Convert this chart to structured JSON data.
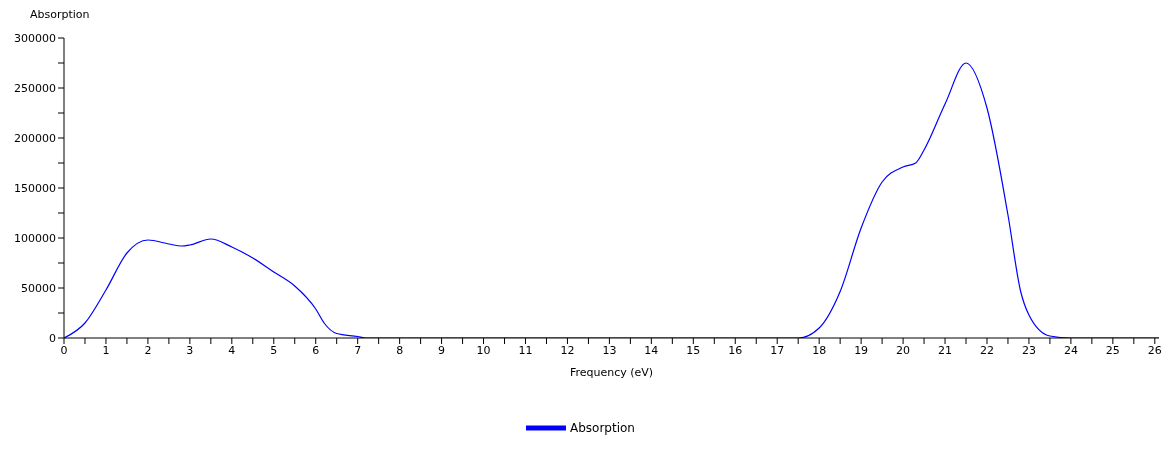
{
  "chart_data": {
    "type": "line",
    "ylabel": "Absorption",
    "xlabel": "Frequency (eV)",
    "x": [
      0,
      0.5,
      1,
      1.5,
      2,
      2.5,
      2.8,
      3,
      3.5,
      4,
      4.5,
      5,
      5.5,
      6,
      6.2,
      6.5,
      7,
      7.2,
      10,
      15,
      17.5,
      18,
      18.5,
      19,
      19.5,
      20,
      20.3,
      20.5,
      21,
      21.5,
      22,
      22.5,
      22.8,
      23,
      23.5,
      24,
      26.1
    ],
    "series": [
      {
        "name": "Absorption",
        "color": "#0000ff",
        "values": [
          0,
          15000,
          48000,
          85000,
          98000,
          94000,
          92000,
          93000,
          99000,
          91000,
          80000,
          66000,
          52000,
          29000,
          15000,
          4500,
          1500,
          0,
          0,
          0,
          0,
          10000,
          46500,
          110000,
          156000,
          171000,
          175000,
          188000,
          234000,
          275000,
          230000,
          123000,
          47000,
          23000,
          2000,
          0,
          0
        ]
      }
    ],
    "xlim": [
      0,
      26.1
    ],
    "xticks": [
      0,
      {
        "value": 0.5,
        "label": null
      },
      1,
      {
        "value": 1.5,
        "label": null
      },
      2,
      {
        "value": 2.5,
        "label": null
      },
      3,
      {
        "value": 3.5,
        "label": null
      },
      4,
      {
        "value": 4.5,
        "label": null
      },
      5,
      {
        "value": 5.5,
        "label": null
      },
      6,
      {
        "value": 6.5,
        "label": null
      },
      7,
      {
        "value": 7.5,
        "label": null
      },
      8,
      {
        "value": 8.5,
        "label": null
      },
      9,
      {
        "value": 9.5,
        "label": null
      },
      10,
      {
        "value": 10.5,
        "label": null
      },
      11,
      {
        "value": 11.5,
        "label": null
      },
      12,
      {
        "value": 12.5,
        "label": null
      },
      13,
      {
        "value": 13.5,
        "label": null
      },
      14,
      {
        "value": 14.5,
        "label": null
      },
      15,
      {
        "value": 15.5,
        "label": null
      },
      16,
      {
        "value": 16.5,
        "label": null
      },
      17,
      {
        "value": 17.5,
        "label": null
      },
      18,
      {
        "value": 18.5,
        "label": null
      },
      19,
      {
        "value": 19.5,
        "label": null
      },
      20,
      {
        "value": 20.5,
        "label": null
      },
      21,
      {
        "value": 21.5,
        "label": null
      },
      22,
      {
        "value": 22.5,
        "label": null
      },
      23,
      {
        "value": 23.5,
        "label": null
      },
      24,
      {
        "value": 24.5,
        "label": null
      },
      25,
      {
        "value": 25.5,
        "label": null
      },
      26
    ],
    "ylim": [
      0,
      300000
    ],
    "yticks": [
      0,
      {
        "value": 25000,
        "label": null
      },
      50000,
      {
        "value": 75000,
        "label": null
      },
      100000,
      {
        "value": 125000,
        "label": null
      },
      150000,
      {
        "value": 175000,
        "label": null
      },
      200000,
      {
        "value": 225000,
        "label": null
      },
      250000,
      {
        "value": 275000,
        "label": null
      },
      300000
    ],
    "grid": false,
    "legend": "bottom",
    "marker": "none",
    "line_style": "solid"
  }
}
